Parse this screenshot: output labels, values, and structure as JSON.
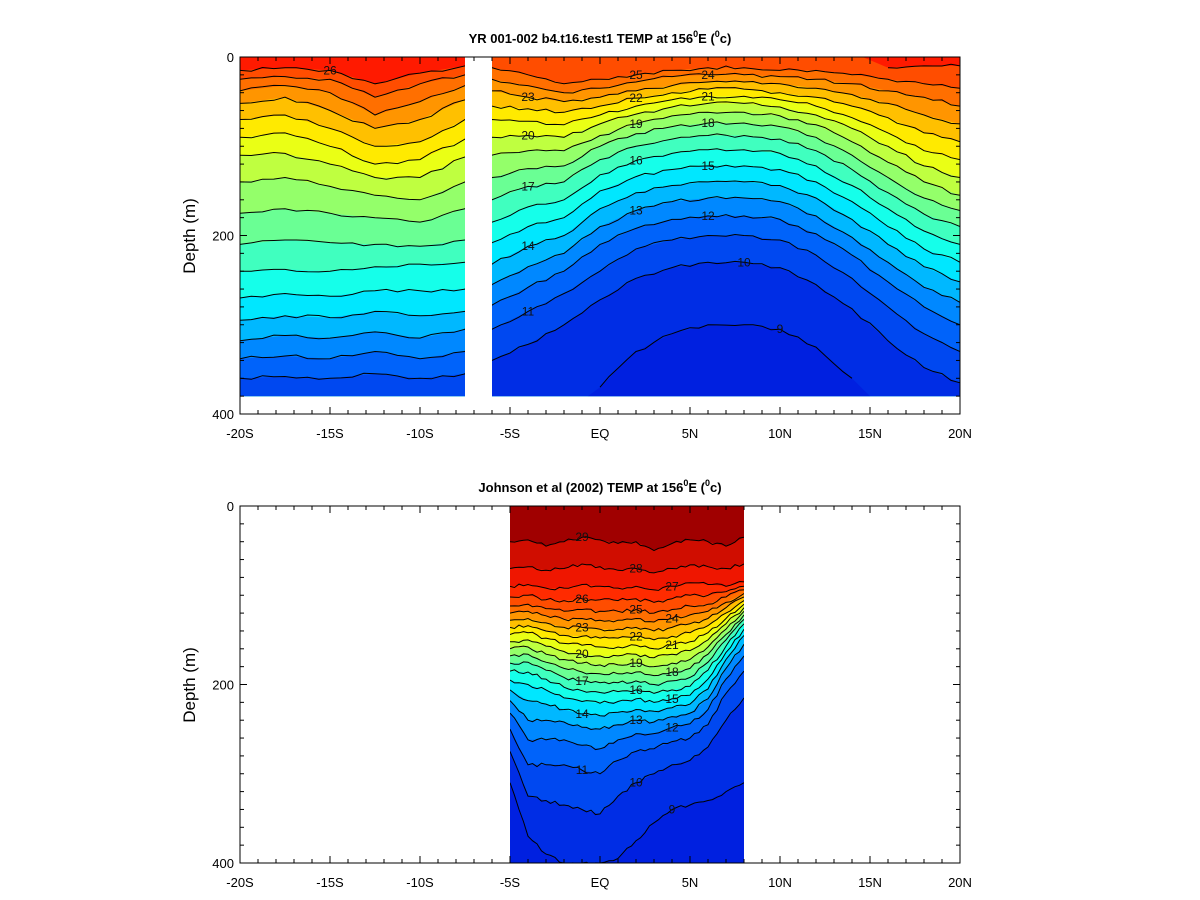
{
  "figure": {
    "panels": [
      {
        "title": {
          "pre": "YR 001-002 b4.t16.test1 TEMP at 156",
          "sup1": "0",
          "mid": "E (",
          "sup2": "0",
          "post": "c)"
        },
        "ylabel": "Depth (m)"
      },
      {
        "title": {
          "pre": "Johnson et al (2002) TEMP at 156",
          "sup1": "0",
          "mid": "E (",
          "sup2": "0",
          "post": "c)"
        },
        "ylabel": "Depth (m)"
      }
    ]
  },
  "chart_data": [
    {
      "type": "heatmap",
      "subtype": "filled-contour",
      "title": "YR 001-002 b4.t16.test1 TEMP at 156°E (°c)",
      "xlabel": "",
      "ylabel": "Depth (m)",
      "xlim": [
        -20,
        20
      ],
      "ylim": [
        400,
        0
      ],
      "y_inverted": true,
      "xticks": [
        -20,
        -15,
        -10,
        -5,
        0,
        5,
        10,
        15,
        20
      ],
      "xtick_labels": [
        "-20S",
        "-15S",
        "-10S",
        "-5S",
        "EQ",
        "5N",
        "10N",
        "15N",
        "20N"
      ],
      "yticks": [
        0,
        200,
        400
      ],
      "ytick_labels": [
        "0",
        "200",
        "400"
      ],
      "data_depth_max": 380,
      "data_coverage": [
        [
          -20,
          -7.5
        ],
        [
          -6,
          20
        ]
      ],
      "colormap": [
        "#0020e0",
        "#0070ff",
        "#00ffff",
        "#7fff7f",
        "#ffff00",
        "#ff8000",
        "#ff1a00"
      ],
      "color_range": [
        9,
        27
      ],
      "contour_levels": [
        9,
        10,
        11,
        12,
        13,
        14,
        15,
        16,
        17,
        18,
        19,
        20,
        21,
        22,
        23,
        24,
        25,
        26
      ],
      "isotherm_x": [
        -20,
        -17.5,
        -15,
        -12.5,
        -10,
        -7.5,
        -6,
        -4,
        -2,
        0,
        2,
        4,
        6,
        8,
        10,
        12,
        14,
        16,
        18,
        20
      ],
      "isotherm_depths": [
        {
          "t": 26,
          "depth": [
            15,
            12,
            15,
            30,
            18,
            10,
            null,
            null,
            null,
            null,
            null,
            null,
            null,
            null,
            null,
            null,
            null,
            12,
            10,
            10
          ]
        },
        {
          "t": 25,
          "depth": [
            25,
            22,
            25,
            45,
            30,
            20,
            12,
            20,
            30,
            25,
            20,
            15,
            12,
            12,
            15,
            15,
            20,
            25,
            30,
            35
          ]
        },
        {
          "t": 24,
          "depth": [
            38,
            32,
            40,
            65,
            50,
            32,
            25,
            32,
            40,
            35,
            28,
            22,
            20,
            20,
            22,
            25,
            30,
            38,
            45,
            55
          ]
        },
        {
          "t": 23,
          "depth": [
            52,
            45,
            60,
            80,
            70,
            48,
            38,
            45,
            50,
            45,
            38,
            32,
            28,
            28,
            30,
            35,
            42,
            52,
            65,
            75
          ]
        },
        {
          "t": 22,
          "depth": [
            70,
            65,
            80,
            100,
            95,
            70,
            55,
            58,
            62,
            55,
            46,
            40,
            36,
            36,
            40,
            45,
            55,
            68,
            85,
            95
          ]
        },
        {
          "t": 21,
          "depth": [
            90,
            85,
            100,
            120,
            115,
            92,
            70,
            72,
            76,
            65,
            55,
            48,
            44,
            44,
            48,
            55,
            68,
            85,
            105,
            115
          ]
        },
        {
          "t": 20,
          "depth": [
            110,
            108,
            120,
            135,
            135,
            112,
            90,
            88,
            90,
            75,
            64,
            56,
            52,
            52,
            56,
            65,
            80,
            100,
            122,
            135
          ]
        },
        {
          "t": 19,
          "depth": [
            140,
            135,
            145,
            155,
            160,
            140,
            110,
            105,
            105,
            88,
            75,
            66,
            62,
            62,
            66,
            76,
            95,
            118,
            140,
            155
          ]
        },
        {
          "t": 18,
          "depth": [
            175,
            170,
            175,
            180,
            185,
            170,
            135,
            125,
            122,
            100,
            86,
            78,
            74,
            74,
            78,
            90,
            110,
            135,
            158,
            172
          ]
        },
        {
          "t": 17,
          "depth": [
            210,
            205,
            208,
            210,
            212,
            205,
            160,
            145,
            140,
            115,
            100,
            92,
            88,
            88,
            92,
            105,
            126,
            152,
            176,
            190
          ]
        },
        {
          "t": 16,
          "depth": [
            240,
            238,
            240,
            235,
            232,
            230,
            185,
            168,
            160,
            132,
            116,
            108,
            104,
            104,
            108,
            122,
            144,
            170,
            195,
            210
          ]
        },
        {
          "t": 15,
          "depth": [
            270,
            265,
            268,
            262,
            262,
            260,
            208,
            190,
            180,
            150,
            134,
            126,
            122,
            122,
            126,
            140,
            162,
            190,
            215,
            230
          ]
        },
        {
          "t": 14,
          "depth": [
            295,
            290,
            292,
            285,
            290,
            285,
            232,
            212,
            200,
            170,
            152,
            144,
            140,
            140,
            144,
            158,
            182,
            210,
            235,
            252
          ]
        },
        {
          "t": 13,
          "depth": [
            318,
            312,
            315,
            308,
            315,
            305,
            255,
            235,
            220,
            190,
            172,
            162,
            158,
            158,
            162,
            178,
            202,
            230,
            258,
            275
          ]
        },
        {
          "t": 12,
          "depth": [
            338,
            335,
            338,
            330,
            338,
            330,
            278,
            258,
            240,
            210,
            192,
            182,
            178,
            178,
            182,
            198,
            222,
            252,
            280,
            300
          ]
        },
        {
          "t": 11,
          "depth": [
            360,
            358,
            360,
            355,
            360,
            355,
            305,
            285,
            265,
            240,
            215,
            205,
            200,
            200,
            205,
            222,
            248,
            280,
            310,
            330
          ]
        },
        {
          "t": 10,
          "depth": [
            null,
            null,
            null,
            null,
            null,
            null,
            340,
            322,
            300,
            272,
            248,
            236,
            230,
            230,
            236,
            255,
            282,
            318,
            348,
            365
          ]
        },
        {
          "t": 9,
          "depth": [
            null,
            null,
            null,
            null,
            null,
            null,
            null,
            null,
            null,
            370,
            330,
            310,
            300,
            300,
            305,
            325,
            360,
            null,
            null,
            null
          ]
        }
      ],
      "grid": false
    },
    {
      "type": "heatmap",
      "subtype": "filled-contour",
      "title": "Johnson et al (2002) TEMP at 156°E (°c)",
      "xlabel": "",
      "ylabel": "Depth (m)",
      "xlim": [
        -20,
        20
      ],
      "ylim": [
        400,
        0
      ],
      "y_inverted": true,
      "xticks": [
        -20,
        -15,
        -10,
        -5,
        0,
        5,
        10,
        15,
        20
      ],
      "xtick_labels": [
        "-20S",
        "-15S",
        "-10S",
        "-5S",
        "EQ",
        "5N",
        "10N",
        "15N",
        "20N"
      ],
      "yticks": [
        0,
        200,
        400
      ],
      "ytick_labels": [
        "0",
        "200",
        "400"
      ],
      "data_depth_max": 400,
      "data_coverage": [
        [
          -5,
          8
        ]
      ],
      "colormap": [
        "#0020e0",
        "#0070ff",
        "#00ffff",
        "#7fff7f",
        "#ffff00",
        "#ff8000",
        "#ff1a00",
        "#a00000"
      ],
      "color_range": [
        9,
        30
      ],
      "contour_levels": [
        9,
        10,
        11,
        12,
        13,
        14,
        15,
        16,
        17,
        18,
        19,
        20,
        21,
        22,
        23,
        24,
        25,
        26,
        27,
        28,
        29
      ],
      "isotherm_x": [
        -5,
        -4,
        -3,
        -2,
        -1,
        0,
        1,
        2,
        3,
        4,
        5,
        6,
        7,
        8
      ],
      "isotherm_depths": [
        {
          "t": 29,
          "depth": [
            40,
            38,
            45,
            40,
            35,
            38,
            42,
            40,
            50,
            42,
            38,
            40,
            45,
            35
          ]
        },
        {
          "t": 28,
          "depth": [
            70,
            68,
            72,
            70,
            65,
            68,
            72,
            70,
            75,
            70,
            66,
            68,
            70,
            65
          ]
        },
        {
          "t": 27,
          "depth": [
            90,
            88,
            92,
            92,
            88,
            90,
            92,
            90,
            94,
            90,
            86,
            88,
            90,
            85
          ]
        },
        {
          "t": 26,
          "depth": [
            102,
            100,
            105,
            106,
            104,
            105,
            106,
            104,
            108,
            104,
            100,
            100,
            96,
            90
          ]
        },
        {
          "t": 25,
          "depth": [
            112,
            110,
            115,
            118,
            116,
            118,
            118,
            116,
            120,
            116,
            112,
            110,
            102,
            94
          ]
        },
        {
          "t": 24,
          "depth": [
            120,
            118,
            123,
            127,
            126,
            128,
            128,
            126,
            130,
            126,
            122,
            118,
            108,
            98
          ]
        },
        {
          "t": 23,
          "depth": [
            128,
            126,
            131,
            136,
            136,
            138,
            138,
            136,
            140,
            136,
            132,
            126,
            114,
            102
          ]
        },
        {
          "t": 22,
          "depth": [
            136,
            134,
            140,
            145,
            146,
            148,
            148,
            146,
            150,
            146,
            142,
            134,
            120,
            106
          ]
        },
        {
          "t": 21,
          "depth": [
            144,
            142,
            148,
            154,
            156,
            158,
            158,
            156,
            160,
            156,
            152,
            142,
            126,
            110
          ]
        },
        {
          "t": 20,
          "depth": [
            152,
            150,
            157,
            163,
            166,
            168,
            168,
            166,
            170,
            166,
            162,
            150,
            132,
            114
          ]
        },
        {
          "t": 19,
          "depth": [
            160,
            158,
            166,
            172,
            176,
            178,
            178,
            176,
            180,
            176,
            172,
            158,
            138,
            118
          ]
        },
        {
          "t": 18,
          "depth": [
            168,
            166,
            175,
            182,
            186,
            188,
            188,
            186,
            190,
            186,
            182,
            166,
            144,
            122
          ]
        },
        {
          "t": 17,
          "depth": [
            176,
            175,
            184,
            192,
            196,
            198,
            198,
            196,
            200,
            196,
            192,
            175,
            150,
            127
          ]
        },
        {
          "t": 16,
          "depth": [
            185,
            186,
            194,
            203,
            207,
            209,
            208,
            206,
            210,
            206,
            202,
            184,
            157,
            132
          ]
        },
        {
          "t": 15,
          "depth": [
            195,
            200,
            206,
            215,
            219,
            221,
            219,
            216,
            220,
            216,
            212,
            194,
            164,
            138
          ]
        },
        {
          "t": 14,
          "depth": [
            206,
            218,
            222,
            228,
            233,
            235,
            231,
            228,
            230,
            226,
            222,
            205,
            172,
            145
          ]
        },
        {
          "t": 13,
          "depth": [
            218,
            240,
            240,
            242,
            248,
            250,
            245,
            240,
            242,
            236,
            232,
            216,
            182,
            155
          ]
        },
        {
          "t": 12,
          "depth": [
            232,
            262,
            262,
            262,
            268,
            272,
            262,
            255,
            255,
            248,
            244,
            228,
            194,
            168
          ]
        },
        {
          "t": 11,
          "depth": [
            250,
            290,
            290,
            290,
            296,
            300,
            285,
            275,
            272,
            264,
            260,
            245,
            210,
            185
          ]
        },
        {
          "t": 10,
          "depth": [
            275,
            325,
            330,
            335,
            340,
            345,
            325,
            310,
            300,
            290,
            285,
            270,
            240,
            215
          ]
        },
        {
          "t": 9,
          "depth": [
            310,
            370,
            390,
            400,
            400,
            400,
            395,
            375,
            355,
            340,
            335,
            330,
            320,
            310
          ]
        }
      ],
      "grid": false
    }
  ]
}
